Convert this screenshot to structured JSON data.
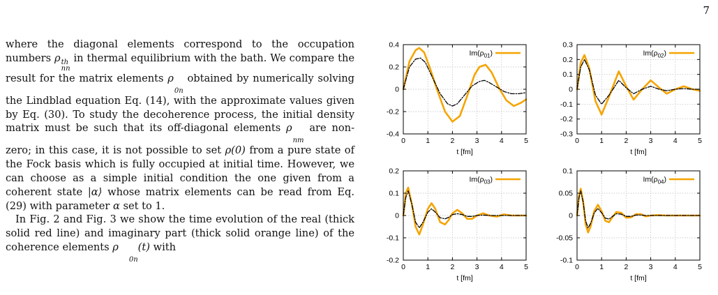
{
  "page": {
    "number": "7"
  },
  "text": {
    "p1": [
      "where the diagonal elements correspond to the occupation numbers ",
      {
        "m": "ρ",
        "sub": "nn",
        "sup": "th"
      },
      " in thermal equilibrium with the bath. We compare the result for the matrix elements ",
      {
        "m": "ρ",
        "sub": "0n"
      },
      " obtained by numerically solving the Lindblad equation Eq. (14), with the approximate values given by Eq. (30). To study the decoherence process, the initial density matrix must be such that its off-diagonal elements ",
      {
        "m": "ρ",
        "sub": "nm"
      },
      " are non-zero; in this case, it is not possible to set ",
      {
        "m": "ρ(0)"
      },
      " from a pure state of the Fock basis which is fully occupied at initial time. However, we can choose as a simple initial condition the one given from a coherent state ",
      {
        "m": "|α⟩"
      },
      " whose matrix elements can be read from Eq. (29) with parameter ",
      {
        "m": "α"
      },
      " set to 1."
    ],
    "p2": [
      "In Fig. 2 and Fig. 3 we show the time evolution of the real (thick solid red line) and imaginary part (thick solid orange line) of the coherence elements ",
      {
        "m": "ρ",
        "sub": "0n"
      },
      {
        "m": "(t)"
      },
      " with"
    ]
  },
  "colors": {
    "numerical": "#f5a400",
    "approximate": "#000000",
    "grid": "#bbbbbb"
  },
  "chart_data": [
    {
      "type": "line",
      "legend_label": "Im(ρ",
      "legend_sub": "01",
      "legend_close": ")",
      "legend_position": "top-right",
      "xlabel": "t [fm]",
      "xlim": [
        0,
        5
      ],
      "ylim": [
        -0.4,
        0.4
      ],
      "xticks": [
        "0",
        "1",
        "2",
        "3",
        "4",
        "5"
      ],
      "yticks": [
        "-0.4",
        "-0.2",
        "0",
        "0.2",
        "0.4"
      ],
      "grid": true,
      "series": [
        {
          "style": "solid-orange",
          "x": [
            0,
            0.25,
            0.5,
            0.65,
            0.85,
            1.1,
            1.4,
            1.7,
            2.0,
            2.3,
            2.6,
            2.9,
            3.1,
            3.35,
            3.6,
            3.9,
            4.2,
            4.5,
            4.8,
            5.0
          ],
          "y": [
            0,
            0.25,
            0.35,
            0.37,
            0.33,
            0.18,
            -0.02,
            -0.2,
            -0.29,
            -0.24,
            -0.06,
            0.13,
            0.2,
            0.22,
            0.15,
            0.01,
            -0.1,
            -0.15,
            -0.12,
            -0.09
          ]
        },
        {
          "style": "dash-dot-black",
          "x": [
            0,
            0.25,
            0.5,
            0.7,
            0.9,
            1.2,
            1.5,
            1.8,
            2.0,
            2.2,
            2.5,
            2.8,
            3.1,
            3.3,
            3.5,
            3.8,
            4.1,
            4.4,
            4.7,
            5.0
          ],
          "y": [
            0,
            0.2,
            0.27,
            0.28,
            0.24,
            0.1,
            -0.04,
            -0.13,
            -0.15,
            -0.13,
            -0.05,
            0.03,
            0.07,
            0.08,
            0.06,
            0.02,
            -0.02,
            -0.04,
            -0.04,
            -0.03
          ]
        }
      ]
    },
    {
      "type": "line",
      "legend_label": "Im(ρ",
      "legend_sub": "02",
      "legend_close": ")",
      "legend_position": "top-right",
      "xlabel": "t [fm]",
      "xlim": [
        0,
        5
      ],
      "ylim": [
        -0.3,
        0.3
      ],
      "xticks": [
        "0",
        "1",
        "2",
        "3",
        "4",
        "5"
      ],
      "yticks": [
        "-0.3",
        "-0.2",
        "-0.1",
        "0",
        "0.1",
        "0.2",
        "0.3"
      ],
      "grid": true,
      "series": [
        {
          "style": "solid-orange",
          "x": [
            0,
            0.15,
            0.3,
            0.5,
            0.75,
            1.0,
            1.3,
            1.7,
            2.0,
            2.3,
            2.65,
            3.0,
            3.35,
            3.65,
            4.0,
            4.35,
            4.7,
            5.0
          ],
          "y": [
            0,
            0.18,
            0.23,
            0.14,
            -0.08,
            -0.17,
            -0.05,
            0.12,
            0.02,
            -0.07,
            0.0,
            0.06,
            0.01,
            -0.03,
            0.0,
            0.02,
            0.0,
            -0.01
          ]
        },
        {
          "style": "dash-dot-black",
          "x": [
            0,
            0.15,
            0.3,
            0.5,
            0.75,
            1.0,
            1.3,
            1.7,
            2.0,
            2.3,
            2.65,
            3.0,
            3.35,
            3.65,
            4.0,
            4.35,
            4.7,
            5.0
          ],
          "y": [
            0,
            0.15,
            0.2,
            0.13,
            -0.04,
            -0.1,
            -0.04,
            0.06,
            0.01,
            -0.03,
            0.0,
            0.02,
            0.0,
            -0.01,
            0.0,
            0.005,
            0.0,
            0.0
          ]
        }
      ]
    },
    {
      "type": "line",
      "legend_label": "Im(ρ",
      "legend_sub": "03",
      "legend_close": ")",
      "legend_position": "top-right",
      "xlabel": "t [fm]",
      "xlim": [
        0,
        5
      ],
      "ylim": [
        -0.2,
        0.2
      ],
      "xticks": [
        "0",
        "1",
        "2",
        "3",
        "4",
        "5"
      ],
      "yticks": [
        "-0.2",
        "-0.1",
        "0",
        "0.1",
        "0.2"
      ],
      "grid": true,
      "series": [
        {
          "style": "solid-orange",
          "x": [
            0,
            0.1,
            0.2,
            0.35,
            0.5,
            0.65,
            0.8,
            1.0,
            1.15,
            1.3,
            1.5,
            1.7,
            1.85,
            2.0,
            2.2,
            2.4,
            2.6,
            2.8,
            3.0,
            3.25,
            3.5,
            3.8,
            4.1,
            4.4,
            4.7,
            5.0
          ],
          "y": [
            0,
            0.1,
            0.125,
            0.05,
            -0.05,
            -0.085,
            -0.04,
            0.03,
            0.055,
            0.03,
            -0.03,
            -0.04,
            -0.02,
            0.01,
            0.025,
            0.01,
            -0.015,
            -0.015,
            0.0,
            0.01,
            0.0,
            -0.005,
            0.005,
            0.0,
            0.0,
            0.0
          ]
        },
        {
          "style": "dash-dot-black",
          "x": [
            0,
            0.1,
            0.2,
            0.35,
            0.5,
            0.65,
            0.8,
            1.0,
            1.15,
            1.3,
            1.5,
            1.7,
            1.85,
            2.0,
            2.2,
            2.4,
            2.6,
            2.8,
            3.0,
            3.25,
            3.5,
            3.8,
            4.1,
            4.4,
            4.7,
            5.0
          ],
          "y": [
            0,
            0.08,
            0.11,
            0.05,
            -0.03,
            -0.055,
            -0.03,
            0.015,
            0.03,
            0.015,
            -0.01,
            -0.015,
            -0.008,
            0.004,
            0.008,
            0.004,
            -0.004,
            -0.004,
            0.0,
            0.002,
            0.0,
            0.0,
            0.0,
            0.0,
            0.0,
            0.0
          ]
        }
      ]
    },
    {
      "type": "line",
      "legend_label": "Im(ρ",
      "legend_sub": "04",
      "legend_close": ")",
      "legend_position": "top-right",
      "xlabel": "t [fm]",
      "xlim": [
        0,
        5
      ],
      "ylim": [
        -0.1,
        0.1
      ],
      "xticks": [
        "0",
        "1",
        "2",
        "3",
        "4",
        "5"
      ],
      "yticks": [
        "-0.1",
        "-0.05",
        "0",
        "0.05",
        "0.1"
      ],
      "grid": true,
      "series": [
        {
          "style": "solid-orange",
          "x": [
            0,
            0.08,
            0.15,
            0.25,
            0.35,
            0.45,
            0.55,
            0.7,
            0.85,
            1.0,
            1.15,
            1.3,
            1.45,
            1.6,
            1.8,
            2.0,
            2.2,
            2.4,
            2.6,
            2.8,
            3.0,
            3.3,
            3.6,
            4.0,
            4.5,
            5.0
          ],
          "y": [
            0,
            0.045,
            0.06,
            0.03,
            -0.02,
            -0.038,
            -0.025,
            0.01,
            0.024,
            0.01,
            -0.012,
            -0.015,
            -0.003,
            0.008,
            0.006,
            -0.005,
            -0.004,
            0.003,
            0.003,
            -0.002,
            0.0,
            0.001,
            0.0,
            0.0,
            0.0,
            0.0
          ]
        },
        {
          "style": "dash-dot-black",
          "x": [
            0,
            0.08,
            0.15,
            0.25,
            0.35,
            0.45,
            0.55,
            0.7,
            0.85,
            1.0,
            1.15,
            1.3,
            1.45,
            1.6,
            1.8,
            2.0,
            2.2,
            2.4,
            2.6,
            2.8,
            3.0,
            3.3,
            3.6,
            4.0,
            4.5,
            5.0
          ],
          "y": [
            0,
            0.04,
            0.055,
            0.03,
            -0.012,
            -0.028,
            -0.018,
            0.006,
            0.016,
            0.006,
            -0.006,
            -0.008,
            -0.002,
            0.004,
            0.003,
            -0.002,
            -0.002,
            0.001,
            0.001,
            0.0,
            0.0,
            0.0,
            0.0,
            0.0,
            0.0,
            0.0
          ]
        }
      ]
    }
  ]
}
